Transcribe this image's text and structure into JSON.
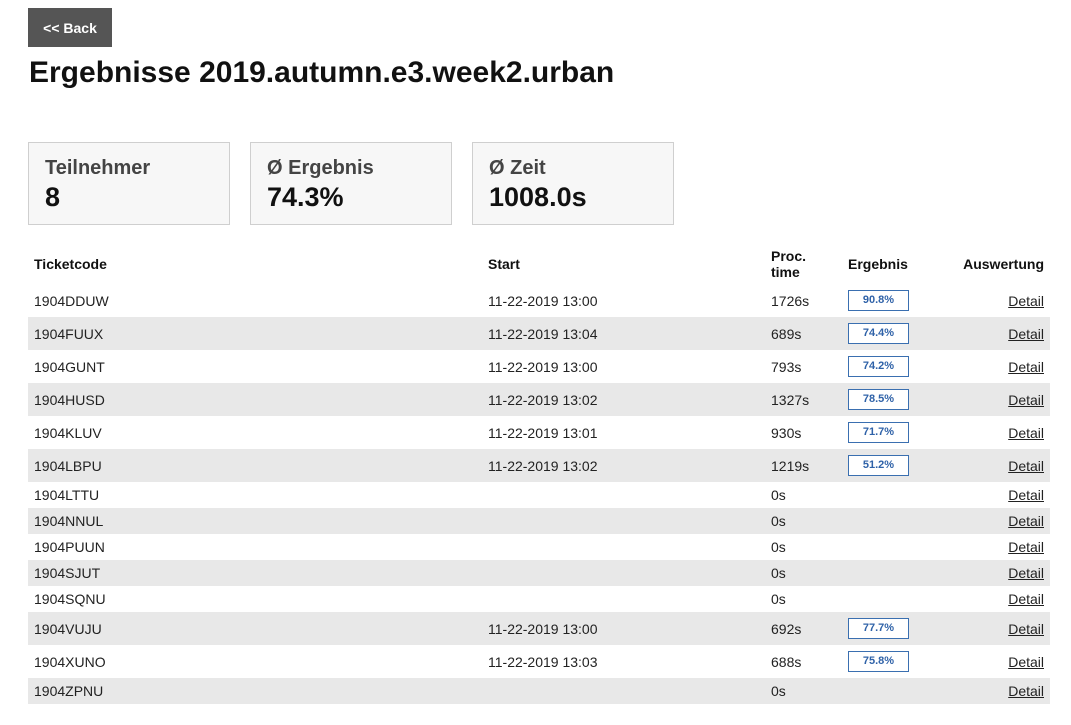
{
  "back_label": "<< Back",
  "title": "Ergebnisse 2019.autumn.e3.week2.urban",
  "stats": [
    {
      "label": "Teilnehmer",
      "value": "8"
    },
    {
      "label": "Ø Ergebnis",
      "value": "74.3%"
    },
    {
      "label": "Ø Zeit",
      "value": "1008.0s"
    }
  ],
  "table": {
    "headers": {
      "ticketcode": "Ticketcode",
      "start": "Start",
      "proc_time_line1": "Proc.",
      "proc_time_line2": "time",
      "ergebnis": "Ergebnis",
      "auswertung": "Auswertung"
    },
    "rows": [
      {
        "ticket": "1904DDUW",
        "start": "11-22-2019 13:00",
        "proc": "1726s",
        "result": "90.8%",
        "action": "Detail"
      },
      {
        "ticket": "1904FUUX",
        "start": "11-22-2019 13:04",
        "proc": "689s",
        "result": "74.4%",
        "action": "Detail"
      },
      {
        "ticket": "1904GUNT",
        "start": "11-22-2019 13:00",
        "proc": "793s",
        "result": "74.2%",
        "action": "Detail"
      },
      {
        "ticket": "1904HUSD",
        "start": "11-22-2019 13:02",
        "proc": "1327s",
        "result": "78.5%",
        "action": "Detail"
      },
      {
        "ticket": "1904KLUV",
        "start": "11-22-2019 13:01",
        "proc": "930s",
        "result": "71.7%",
        "action": "Detail"
      },
      {
        "ticket": "1904LBPU",
        "start": "11-22-2019 13:02",
        "proc": "1219s",
        "result": "51.2%",
        "action": "Detail"
      },
      {
        "ticket": "1904LTTU",
        "start": "",
        "proc": "0s",
        "result": "",
        "action": "Detail"
      },
      {
        "ticket": "1904NNUL",
        "start": "",
        "proc": "0s",
        "result": "",
        "action": "Detail"
      },
      {
        "ticket": "1904PUUN",
        "start": "",
        "proc": "0s",
        "result": "",
        "action": "Detail"
      },
      {
        "ticket": "1904SJUT",
        "start": "",
        "proc": "0s",
        "result": "",
        "action": "Detail"
      },
      {
        "ticket": "1904SQNU",
        "start": "",
        "proc": "0s",
        "result": "",
        "action": "Detail"
      },
      {
        "ticket": "1904VUJU",
        "start": "11-22-2019 13:00",
        "proc": "692s",
        "result": "77.7%",
        "action": "Detail"
      },
      {
        "ticket": "1904XUNO",
        "start": "11-22-2019 13:03",
        "proc": "688s",
        "result": "75.8%",
        "action": "Detail"
      },
      {
        "ticket": "1904ZPNU",
        "start": "",
        "proc": "0s",
        "result": "",
        "action": "Detail"
      }
    ]
  },
  "colors": {
    "back_button_bg": "#555555",
    "row_shade": "#e8e8e8",
    "badge_border": "#3a6fb0",
    "badge_text": "#2f62a8",
    "card_bg": "#f7f7f7"
  }
}
